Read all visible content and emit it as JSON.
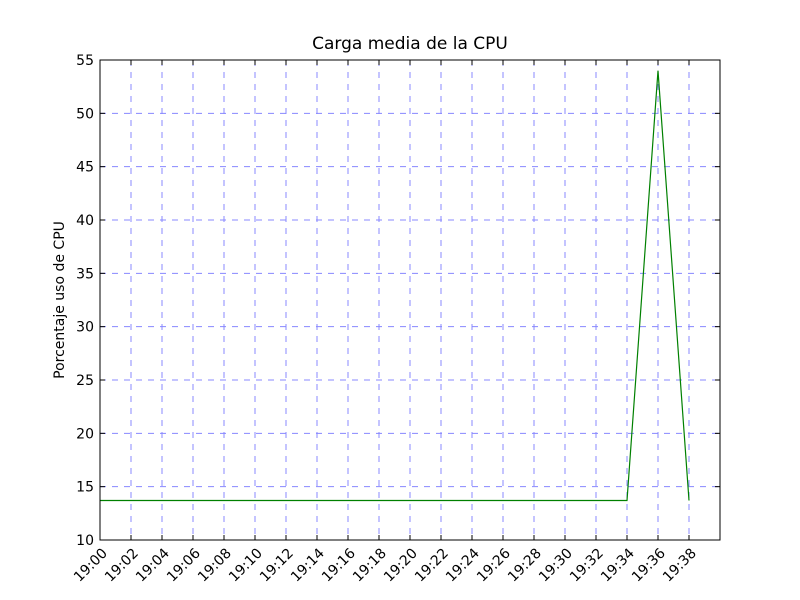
{
  "chart_data": {
    "type": "line",
    "title": "Carga media de la CPU",
    "xlabel": "",
    "ylabel": "Porcentaje uso de CPU",
    "x_ticks": [
      "19:00",
      "19:02",
      "19:04",
      "19:06",
      "19:08",
      "19:10",
      "19:12",
      "19:14",
      "19:16",
      "19:18",
      "19:20",
      "19:22",
      "19:24",
      "19:26",
      "19:28",
      "19:30",
      "19:32",
      "19:34",
      "19:36",
      "19:38"
    ],
    "xlim": [
      "19:00",
      "19:40"
    ],
    "y_ticks": [
      10,
      15,
      20,
      25,
      30,
      35,
      40,
      45,
      50,
      55
    ],
    "ylim": [
      10,
      55
    ],
    "grid": true,
    "grid_color": "#8888ff",
    "series": [
      {
        "color": "#008000",
        "x": [
          "19:00",
          "19:34",
          "19:36",
          "19:38"
        ],
        "y": [
          13.7,
          13.7,
          54,
          13.7
        ]
      }
    ]
  }
}
